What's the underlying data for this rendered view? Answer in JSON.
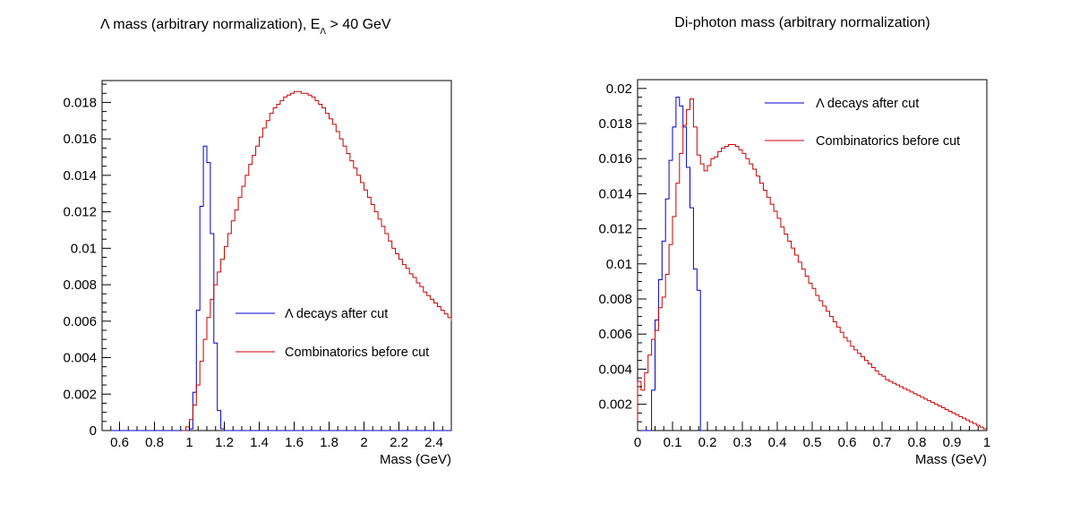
{
  "chart_data": [
    {
      "type": "line",
      "title": "Λ mass (arbitrary normalization), E",
      "title_sub": "Λ",
      "title_tail": " > 40 GeV",
      "xlabel": "Mass (GeV)",
      "ylabel": "",
      "xlim": [
        0.5,
        2.5
      ],
      "ylim": [
        0,
        0.0192
      ],
      "xticks": [
        0.6,
        0.8,
        1.0,
        1.2,
        1.4,
        1.6,
        1.8,
        2.0,
        2.2,
        2.4
      ],
      "xtick_labels": [
        "0.6",
        "0.8",
        "1",
        "1.2",
        "1.4",
        "1.6",
        "1.8",
        "2",
        "2.2",
        "2.4"
      ],
      "yticks": [
        0,
        0.002,
        0.004,
        0.006,
        0.008,
        0.01,
        0.012,
        0.014,
        0.016,
        0.018
      ],
      "ytick_labels": [
        "0",
        "0.002",
        "0.004",
        "0.006",
        "0.008",
        "0.01",
        "0.012",
        "0.014",
        "0.016",
        "0.018"
      ],
      "grid": false,
      "legend_position": "right-middle",
      "style": "step-histogram",
      "series": [
        {
          "name": "Λ decays after cut",
          "color": "#0000cc",
          "x": [
            0.5,
            1.0,
            1.02,
            1.04,
            1.06,
            1.08,
            1.1,
            1.12,
            1.14,
            1.16,
            1.18,
            1.2,
            2.5
          ],
          "y": [
            0,
            0.0001,
            0.0021,
            0.0066,
            0.0123,
            0.0156,
            0.0147,
            0.0108,
            0.0048,
            0.0011,
            0.0001,
            0,
            0
          ]
        },
        {
          "name": "Combinatorics before cut",
          "color": "#cc0000",
          "x": [
            0.96,
            0.98,
            1.0,
            1.02,
            1.04,
            1.06,
            1.08,
            1.1,
            1.12,
            1.14,
            1.16,
            1.18,
            1.2,
            1.22,
            1.24,
            1.26,
            1.28,
            1.3,
            1.32,
            1.34,
            1.36,
            1.38,
            1.4,
            1.42,
            1.44,
            1.46,
            1.48,
            1.5,
            1.52,
            1.54,
            1.56,
            1.58,
            1.6,
            1.62,
            1.64,
            1.66,
            1.68,
            1.7,
            1.72,
            1.74,
            1.76,
            1.78,
            1.8,
            1.82,
            1.84,
            1.86,
            1.88,
            1.9,
            1.92,
            1.94,
            1.96,
            1.98,
            2.0,
            2.02,
            2.04,
            2.06,
            2.08,
            2.1,
            2.12,
            2.14,
            2.16,
            2.18,
            2.2,
            2.22,
            2.24,
            2.26,
            2.28,
            2.3,
            2.32,
            2.34,
            2.36,
            2.38,
            2.4,
            2.42,
            2.44,
            2.46,
            2.48,
            2.5
          ],
          "y": [
            0,
            0.0002,
            0.0006,
            0.0014,
            0.0025,
            0.0038,
            0.005,
            0.0062,
            0.0072,
            0.008,
            0.0087,
            0.0094,
            0.0101,
            0.0108,
            0.0115,
            0.0121,
            0.0128,
            0.0134,
            0.014,
            0.0146,
            0.0151,
            0.0156,
            0.0161,
            0.0166,
            0.017,
            0.0174,
            0.0177,
            0.0179,
            0.0181,
            0.0183,
            0.0184,
            0.0185,
            0.0186,
            0.0186,
            0.0185,
            0.0185,
            0.0184,
            0.0183,
            0.0181,
            0.0179,
            0.0177,
            0.0174,
            0.0171,
            0.0168,
            0.0164,
            0.016,
            0.0156,
            0.0152,
            0.0148,
            0.0144,
            0.014,
            0.0136,
            0.0132,
            0.0128,
            0.0124,
            0.012,
            0.0116,
            0.0112,
            0.0108,
            0.0104,
            0.01,
            0.0097,
            0.0094,
            0.0091,
            0.0089,
            0.0086,
            0.0084,
            0.0081,
            0.0079,
            0.0076,
            0.0074,
            0.0072,
            0.007,
            0.0068,
            0.0066,
            0.0064,
            0.0062,
            0.006
          ]
        }
      ]
    },
    {
      "type": "line",
      "title": "Di-photon mass (arbitrary normalization)",
      "xlabel": "Mass (GeV)",
      "ylabel": "",
      "xlim": [
        0,
        1
      ],
      "ylim": [
        0.0005,
        0.0205
      ],
      "xticks": [
        0,
        0.1,
        0.2,
        0.3,
        0.4,
        0.5,
        0.6,
        0.7,
        0.8,
        0.9,
        1.0
      ],
      "xtick_labels": [
        "0",
        "0.1",
        "0.2",
        "0.3",
        "0.4",
        "0.5",
        "0.6",
        "0.7",
        "0.8",
        "0.9",
        "1"
      ],
      "yticks": [
        0.002,
        0.004,
        0.006,
        0.008,
        0.01,
        0.012,
        0.014,
        0.016,
        0.018,
        0.02
      ],
      "ytick_labels": [
        "0.002",
        "0.004",
        "0.006",
        "0.008",
        "0.01",
        "0.012",
        "0.014",
        "0.016",
        "0.018",
        "0.02"
      ],
      "grid": false,
      "legend_position": "top-right",
      "style": "step-histogram",
      "series": [
        {
          "name": "Λ decays after cut",
          "color": "#0000cc",
          "x": [
            0.0,
            0.01,
            0.02,
            0.03,
            0.04,
            0.05,
            0.06,
            0.07,
            0.08,
            0.09,
            0.1,
            0.11,
            0.12,
            0.13,
            0.14,
            0.15,
            0.16,
            0.17,
            0.18
          ],
          "y": [
            0.0005,
            0.0005,
            0.0005,
            0.0005,
            0.0028,
            0.0068,
            0.0091,
            0.0113,
            0.0137,
            0.0159,
            0.0178,
            0.0195,
            0.019,
            0.0178,
            0.0155,
            0.0132,
            0.0097,
            0.0085,
            0.0005
          ]
        },
        {
          "name": "Combinatorics before cut",
          "color": "#cc0000",
          "x": [
            0.0,
            0.01,
            0.02,
            0.03,
            0.04,
            0.05,
            0.06,
            0.07,
            0.08,
            0.09,
            0.1,
            0.11,
            0.12,
            0.13,
            0.14,
            0.15,
            0.16,
            0.17,
            0.18,
            0.19,
            0.2,
            0.21,
            0.22,
            0.23,
            0.24,
            0.25,
            0.26,
            0.27,
            0.28,
            0.29,
            0.3,
            0.31,
            0.32,
            0.33,
            0.34,
            0.35,
            0.36,
            0.37,
            0.38,
            0.39,
            0.4,
            0.41,
            0.42,
            0.43,
            0.44,
            0.45,
            0.46,
            0.47,
            0.48,
            0.49,
            0.5,
            0.51,
            0.52,
            0.53,
            0.54,
            0.55,
            0.56,
            0.57,
            0.58,
            0.59,
            0.6,
            0.61,
            0.62,
            0.63,
            0.64,
            0.65,
            0.66,
            0.67,
            0.68,
            0.69,
            0.7,
            0.71,
            0.72,
            0.73,
            0.74,
            0.75,
            0.76,
            0.77,
            0.78,
            0.79,
            0.8,
            0.81,
            0.82,
            0.83,
            0.84,
            0.85,
            0.86,
            0.87,
            0.88,
            0.89,
            0.9,
            0.91,
            0.92,
            0.93,
            0.94,
            0.95,
            0.96,
            0.97,
            0.98,
            0.99
          ],
          "y": [
            0.0033,
            0.0028,
            0.0038,
            0.0048,
            0.0057,
            0.0062,
            0.0075,
            0.0081,
            0.0094,
            0.0111,
            0.0127,
            0.0146,
            0.0163,
            0.0179,
            0.0188,
            0.0194,
            0.0178,
            0.0162,
            0.0157,
            0.0153,
            0.0156,
            0.016,
            0.0161,
            0.0164,
            0.0166,
            0.0167,
            0.0168,
            0.0168,
            0.0167,
            0.0165,
            0.0163,
            0.016,
            0.0157,
            0.0154,
            0.015,
            0.0146,
            0.0142,
            0.0138,
            0.0134,
            0.013,
            0.0126,
            0.0121,
            0.0117,
            0.0113,
            0.0109,
            0.0105,
            0.0101,
            0.0097,
            0.0093,
            0.0089,
            0.0086,
            0.0082,
            0.0079,
            0.0076,
            0.0073,
            0.007,
            0.0067,
            0.0064,
            0.0061,
            0.0058,
            0.0056,
            0.0053,
            0.0051,
            0.0049,
            0.0047,
            0.0045,
            0.0043,
            0.0041,
            0.0039,
            0.0037,
            0.0036,
            0.0034,
            0.0033,
            0.0032,
            0.0031,
            0.003,
            0.0029,
            0.0028,
            0.0027,
            0.0026,
            0.0025,
            0.0024,
            0.0023,
            0.0022,
            0.0021,
            0.002,
            0.0019,
            0.0018,
            0.0017,
            0.0016,
            0.0015,
            0.0014,
            0.0013,
            0.0012,
            0.0011,
            0.001,
            0.0009,
            0.0008,
            0.0007,
            0.0006
          ]
        }
      ]
    }
  ]
}
